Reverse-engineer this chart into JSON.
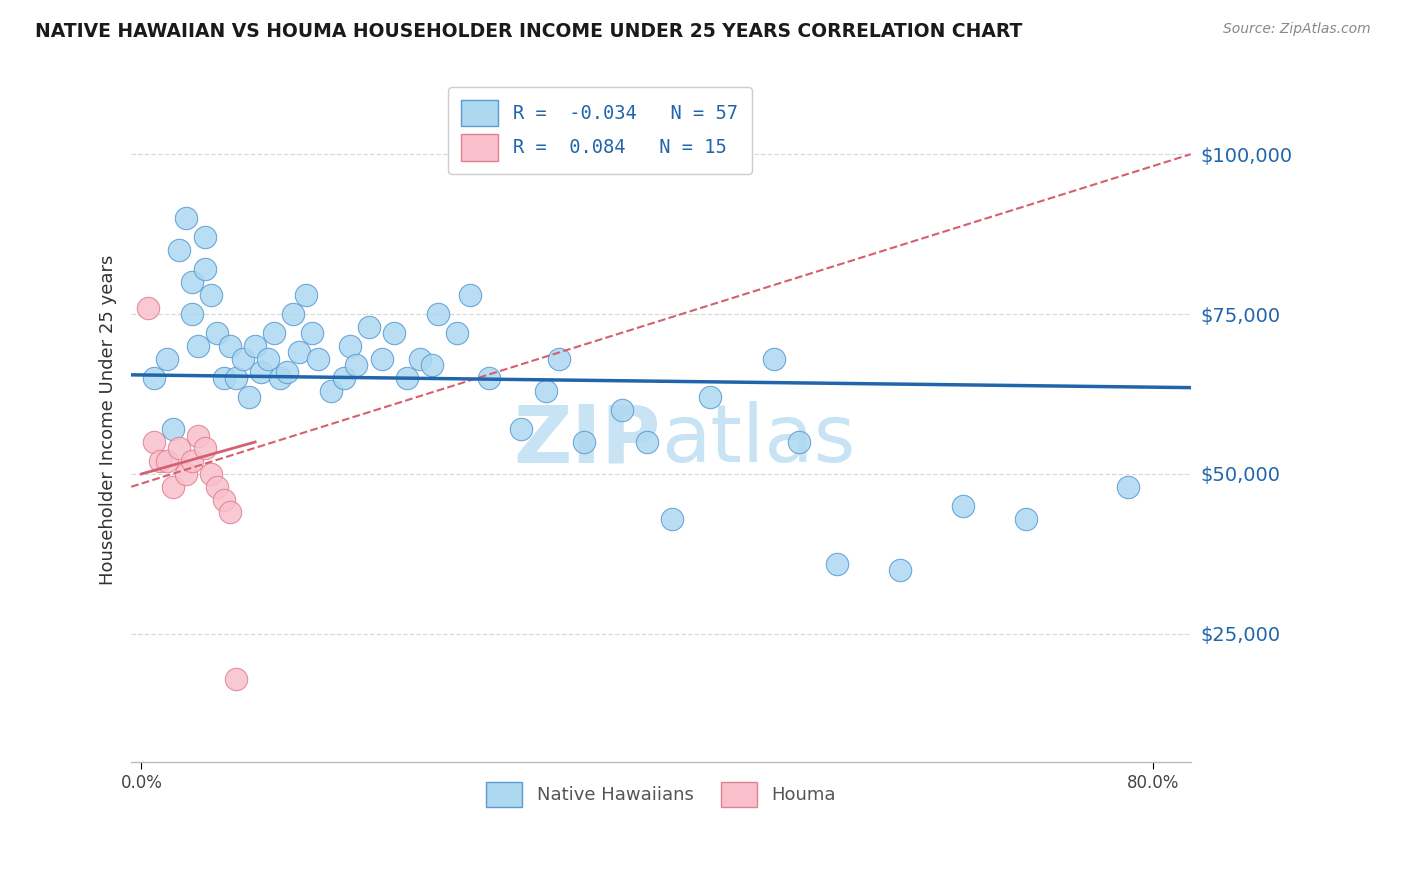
{
  "title": "NATIVE HAWAIIAN VS HOUMA HOUSEHOLDER INCOME UNDER 25 YEARS CORRELATION CHART",
  "source": "Source: ZipAtlas.com",
  "ylabel": "Householder Income Under 25 years",
  "legend_bottom": [
    "Native Hawaiians",
    "Houma"
  ],
  "r_native": -0.034,
  "n_native": 57,
  "r_houma": 0.084,
  "n_houma": 15,
  "ytick_labels": [
    "$25,000",
    "$50,000",
    "$75,000",
    "$100,000"
  ],
  "ytick_values": [
    25000,
    50000,
    75000,
    100000
  ],
  "ylim": [
    5000,
    112000
  ],
  "xlim": [
    -0.008,
    0.83
  ],
  "native_color": "#add8f0",
  "native_edge": "#5b9bd5",
  "houma_color": "#f9c0cc",
  "houma_edge": "#e08090",
  "native_line_color": "#2166ac",
  "houma_line_color": "#d46070",
  "watermark_color": "#c8e4f4",
  "legend_bottom_labels": [
    "Native Hawaiians",
    "Houma"
  ],
  "native_x": [
    0.01,
    0.02,
    0.025,
    0.03,
    0.035,
    0.04,
    0.04,
    0.045,
    0.05,
    0.05,
    0.055,
    0.06,
    0.065,
    0.07,
    0.075,
    0.08,
    0.085,
    0.09,
    0.095,
    0.1,
    0.105,
    0.11,
    0.115,
    0.12,
    0.125,
    0.13,
    0.135,
    0.14,
    0.15,
    0.16,
    0.165,
    0.17,
    0.18,
    0.19,
    0.2,
    0.21,
    0.22,
    0.23,
    0.235,
    0.25,
    0.26,
    0.275,
    0.3,
    0.32,
    0.33,
    0.35,
    0.38,
    0.4,
    0.42,
    0.45,
    0.5,
    0.52,
    0.55,
    0.6,
    0.65,
    0.7,
    0.78
  ],
  "native_y": [
    65000,
    68000,
    57000,
    85000,
    90000,
    80000,
    75000,
    70000,
    87000,
    82000,
    78000,
    72000,
    65000,
    70000,
    65000,
    68000,
    62000,
    70000,
    66000,
    68000,
    72000,
    65000,
    66000,
    75000,
    69000,
    78000,
    72000,
    68000,
    63000,
    65000,
    70000,
    67000,
    73000,
    68000,
    72000,
    65000,
    68000,
    67000,
    75000,
    72000,
    78000,
    65000,
    57000,
    63000,
    68000,
    55000,
    60000,
    55000,
    43000,
    62000,
    68000,
    55000,
    36000,
    35000,
    45000,
    43000,
    48000
  ],
  "houma_x": [
    0.005,
    0.01,
    0.015,
    0.02,
    0.025,
    0.03,
    0.035,
    0.04,
    0.045,
    0.05,
    0.055,
    0.06,
    0.065,
    0.07,
    0.075
  ],
  "houma_y": [
    76000,
    55000,
    52000,
    52000,
    48000,
    54000,
    50000,
    52000,
    56000,
    54000,
    50000,
    48000,
    46000,
    44000,
    18000
  ]
}
